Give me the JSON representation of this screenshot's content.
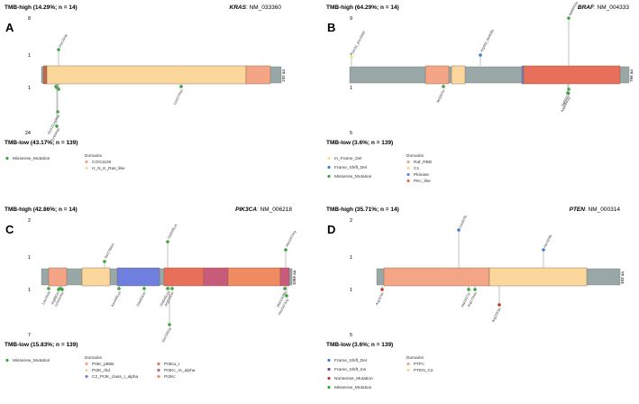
{
  "colors": {
    "missense": "#3aa53a",
    "frame_shift_del": "#3a7fd0",
    "frame_shift_ins": "#7b3f98",
    "nonsense": "#c0392b",
    "in_frame_del": "#f2df8e",
    "backbone": "#9aa7a7"
  },
  "panels": [
    {
      "label": "A",
      "high_title": "TMB-high (14.29%; n = 14)",
      "gene": "KRAS",
      "accession": ": NM_033360",
      "length": "192 aa",
      "ticks": {
        "top_max": "8",
        "top_min": "1",
        "bottom_min": "1",
        "bottom_max": "24"
      },
      "low_title": "TMB-low (43.17%; n = 139)",
      "mutation_types": [
        "Missense_Mutation"
      ],
      "domains_header": "Domains",
      "domains": [
        {
          "name": "COG1100",
          "color": "#f4a585"
        },
        {
          "name": "H_N_K_Ras_like",
          "color": "#fbd79b"
        }
      ],
      "top_labels": [
        "Gly13Asp"
      ],
      "bottom_labels": [
        "Gly12Cys/Asp",
        "Tyr64Asp",
        "Lys117Asn"
      ]
    },
    {
      "label": "B",
      "high_title": "TMB-high (64.29%; n = 14)",
      "gene": "BRAF",
      "accession": ": NM_004333",
      "length": "766 aa",
      "ticks": {
        "top_max": "9",
        "top_min": "1",
        "bottom_min": "1",
        "bottom_max": "5"
      },
      "low_title": "TMB-low (3.6%; n = 139)",
      "mutation_types": [
        "In_Frame_Del",
        "Frame_Shift_Del",
        "Missense_Mutation"
      ],
      "domains_header": "Domains",
      "domains": [
        {
          "name": "Raf_RBD",
          "color": "#f4a585"
        },
        {
          "name": "C1",
          "color": "#fbd79b"
        },
        {
          "name": "Pkinase",
          "color": "#6f7fe0"
        },
        {
          "name": "PKc_like",
          "color": "#e8705a"
        }
      ],
      "top_labels": [
        "Gln32_Asn33del",
        "Arg462_Ile463fs",
        "Val600Glu"
      ],
      "bottom_labels": [
        "Ile326Thr",
        "Val600Glu",
        "Asp594Gly"
      ]
    },
    {
      "label": "C",
      "high_title": "TMB-high (42.86%; n = 14)",
      "gene": "PIK3CA",
      "accession": ": NM_006218",
      "length": "1068 aa",
      "ticks": {
        "top_max": "2",
        "top_min": "1",
        "bottom_min": "1",
        "bottom_max": "7"
      },
      "low_title": "TMB-low (15.83%; n = 139)",
      "mutation_types": [
        "Missense_Mutation"
      ],
      "domains_header": "Domains",
      "domains": [
        {
          "name": "PI3K_p85B",
          "color": "#f4a585"
        },
        {
          "name": "PI3K_rbd",
          "color": "#fbd79b"
        },
        {
          "name": "C2_PI3K_class_I_alpha",
          "color": "#6f7fe0"
        },
        {
          "name": "PI3Ka_I",
          "color": "#e8705a"
        },
        {
          "name": "PI3Kc_IA_alpha",
          "color": "#c85a7a"
        },
        {
          "name": "PI3Kc",
          "color": "#f08a60"
        }
      ],
      "top_labels": [
        "Ser278Asn",
        "Glu545Lys",
        "His1047Arg"
      ],
      "bottom_labels": [
        "Leu10Val",
        "Arg88Gln",
        "Lys111Asn",
        "Asn345Lys",
        "Glu453Gln",
        "Glu545Lys",
        "Arg515Gln",
        "Glu726Gly",
        "Met1043Ile",
        "His1047Arg"
      ]
    },
    {
      "label": "D",
      "high_title": "TMB-high (35.71%; n = 14)",
      "gene": "PTEN",
      "accession": ": NM_000314",
      "length": "403 aa",
      "ticks": {
        "top_max": "2",
        "top_min": "1",
        "bottom_min": "1",
        "bottom_max": "5"
      },
      "low_title": "TMB-low (3.6%; n = 139)",
      "mutation_types": [
        "Frame_Shift_Del",
        "Frame_Shift_Ins",
        "Nonsense_Mutation",
        "Missense_Mutation"
      ],
      "domains_header": "Domains",
      "domains": [
        {
          "name": "PTPc",
          "color": "#f4a585"
        },
        {
          "name": "PTEN_C2",
          "color": "#fbd79b"
        }
      ],
      "top_labels": [
        "Lys267fs",
        "Asn323fs"
      ],
      "bottom_labels": [
        "Arg15Ter",
        "Asp162Tyr",
        "Arg173His",
        "Arg233Ter"
      ]
    }
  ]
}
